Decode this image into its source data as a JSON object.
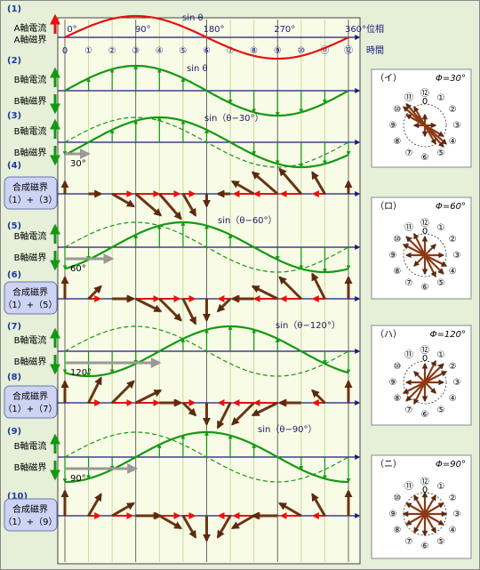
{
  "time_axis": {
    "ticks": [
      "0",
      "①",
      "②",
      "③",
      "④",
      "⑤",
      "⑥",
      "⑦",
      "⑧",
      "⑨",
      "⑩",
      "⑪",
      "⑫"
    ],
    "label": "時間"
  },
  "phase_axis": {
    "ticks": [
      "0°",
      "90°",
      "180°",
      "270°",
      "360°"
    ],
    "label": "位相"
  },
  "rows": [
    {
      "number": "(1)",
      "current": "A軸電流",
      "field": "A軸磁界",
      "curve": "sin θ"
    },
    {
      "number": "(2)",
      "current": "B軸電流",
      "field": "B軸磁界",
      "curve": "sin θ"
    },
    {
      "number": "(3)",
      "current": "B軸電流",
      "field": "B軸磁界",
      "curve": "sin（θ−30°）",
      "shift": {
        "value": 30,
        "label": "30°"
      }
    },
    {
      "number": "(4)",
      "title": "合成磁界",
      "formula": "（1）+（3）"
    },
    {
      "number": "(5)",
      "current": "B軸電流",
      "field": "B軸磁界",
      "curve": "sin（θ−60°）",
      "shift": {
        "value": 60,
        "label": "60°"
      }
    },
    {
      "number": "(6)",
      "title": "合成磁界",
      "formula": "（1）+（5）"
    },
    {
      "number": "(7)",
      "current": "B軸電流",
      "field": "B軸磁界",
      "curve": "sin（θ−120°）",
      "shift": {
        "value": 120,
        "label": "120°"
      }
    },
    {
      "number": "(8)",
      "title": "合成磁界",
      "formula": "（1）+（7）"
    },
    {
      "number": "(9)",
      "current": "B軸電流",
      "field": "B軸磁界",
      "curve": "sin（θ−90°）",
      "shift": {
        "value": 90,
        "label": "90°"
      }
    },
    {
      "number": "(10)",
      "title": "合成磁界",
      "formula": "（1）+（9）"
    }
  ],
  "panels": [
    {
      "label": "（イ）",
      "phi": {
        "value": 30,
        "label": "Φ=30°"
      }
    },
    {
      "label": "（ロ）",
      "phi": {
        "value": 60,
        "label": "Φ=60°"
      }
    },
    {
      "label": "（ハ）",
      "phi": {
        "value": 120,
        "label": "Φ=120°"
      }
    },
    {
      "label": "（ニ）",
      "phi": {
        "value": 90,
        "label": "Φ=90°"
      }
    }
  ]
}
